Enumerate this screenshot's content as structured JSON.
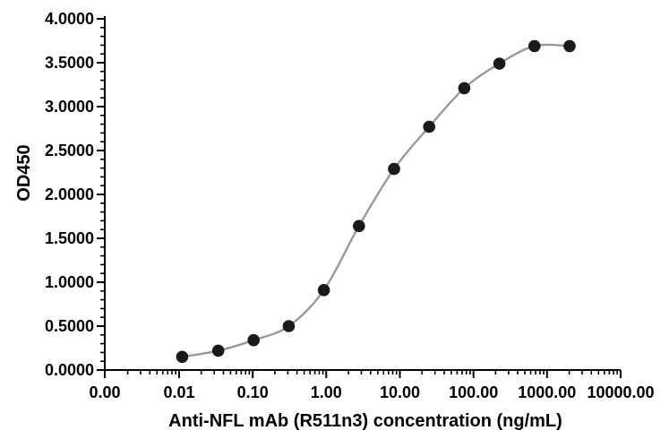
{
  "chart_data": {
    "type": "scatter",
    "title": "",
    "xlabel": "Anti-NFL mAb (R511n3) concentration (ng/mL)",
    "ylabel": "OD450",
    "x_scale": "log",
    "grid": false,
    "legend": null,
    "x": [
      0.011,
      0.034,
      0.103,
      0.309,
      0.926,
      2.78,
      8.33,
      25,
      75,
      225,
      675,
      2025
    ],
    "y": [
      0.15,
      0.22,
      0.34,
      0.5,
      0.91,
      1.64,
      2.29,
      2.77,
      3.21,
      3.49,
      3.69,
      3.69
    ],
    "x_ticks": [
      {
        "value": 0,
        "label": "0.00"
      },
      {
        "value": 0.01,
        "label": "0.01"
      },
      {
        "value": 0.1,
        "label": "0.10"
      },
      {
        "value": 1,
        "label": "1.00"
      },
      {
        "value": 10,
        "label": "10.00"
      },
      {
        "value": 100,
        "label": "100.00"
      },
      {
        "value": 1000,
        "label": "1000.00"
      },
      {
        "value": 10000,
        "label": "10000.00"
      }
    ],
    "y_ticks": [
      {
        "value": 0,
        "label": "0.0000"
      },
      {
        "value": 0.5,
        "label": "0.5000"
      },
      {
        "value": 1,
        "label": "1.0000"
      },
      {
        "value": 1.5,
        "label": "1.5000"
      },
      {
        "value": 2,
        "label": "2.0000"
      },
      {
        "value": 2.5,
        "label": "2.5000"
      },
      {
        "value": 3,
        "label": "3.0000"
      },
      {
        "value": 3.5,
        "label": "3.5000"
      },
      {
        "value": 4,
        "label": "4.0000"
      }
    ],
    "ylim": [
      0,
      4
    ],
    "y_minor_step": 0.1,
    "colors": {
      "point": "#1a1a1a",
      "curve": "#999999",
      "axis": "#000000",
      "text": "#000000",
      "background": "#ffffff"
    }
  }
}
